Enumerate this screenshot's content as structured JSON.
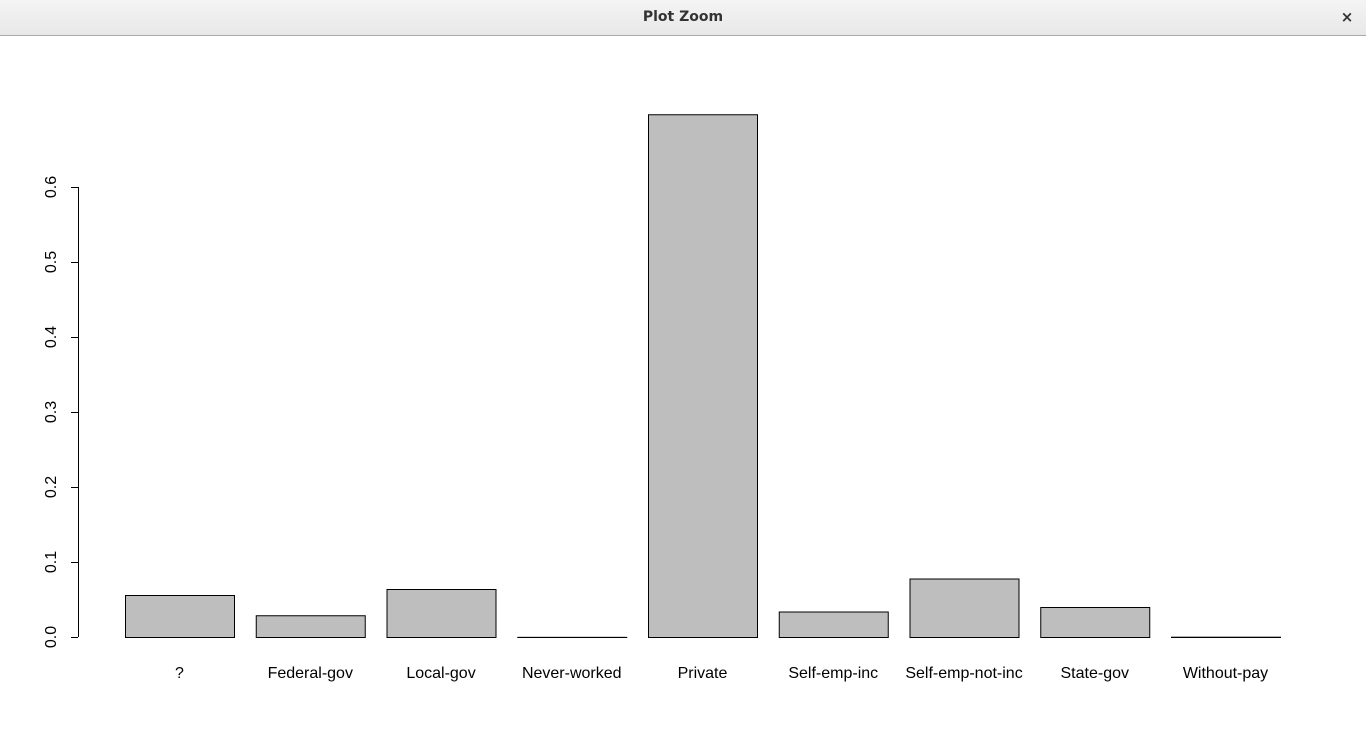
{
  "window": {
    "title": "Plot Zoom",
    "close_label": "×"
  },
  "chart_data": {
    "type": "bar",
    "categories": [
      "?",
      "Federal-gov",
      "Local-gov",
      "Never-worked",
      "Private",
      "Self-emp-inc",
      "Self-emp-not-inc",
      "State-gov",
      "Without-pay"
    ],
    "values": [
      0.056,
      0.029,
      0.064,
      0.0002,
      0.697,
      0.034,
      0.078,
      0.04,
      0.0004
    ],
    "title": "",
    "xlabel": "",
    "ylabel": "",
    "yticks": [
      0.0,
      0.1,
      0.2,
      0.3,
      0.4,
      0.5,
      0.6
    ],
    "ytick_labels": [
      "0.0",
      "0.1",
      "0.2",
      "0.3",
      "0.4",
      "0.5",
      "0.6"
    ],
    "grid": false,
    "bar_color": "#bebebe",
    "bar_edge_color": "#000000"
  }
}
